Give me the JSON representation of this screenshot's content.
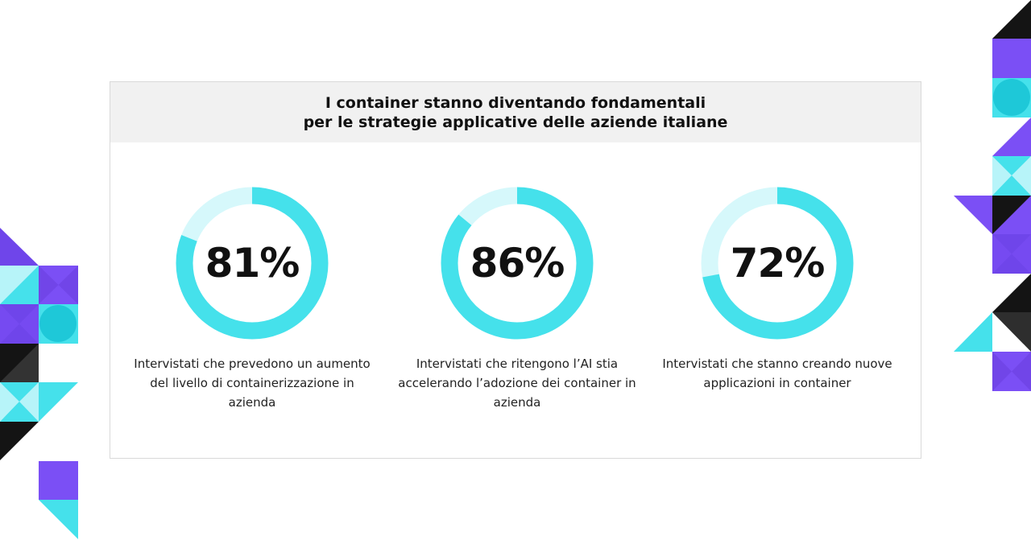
{
  "title_line1": "I container stanno diventando fondamentali",
  "title_line2": "per le strategie applicative delle aziende italiane",
  "colors": {
    "accent": "#45E1EB",
    "track": "#D6F8FB",
    "purple": "#7B4FF5",
    "black": "#141414"
  },
  "chart_data": [
    {
      "type": "pie",
      "value": 81,
      "label": "81%",
      "description": "Intervistati che prevedono un aumento del livello di containerizzazione in azienda"
    },
    {
      "type": "pie",
      "value": 86,
      "label": "86%",
      "description": "Intervistati che ritengono l’AI stia accelerando l’adozione dei container in azienda"
    },
    {
      "type": "pie",
      "value": 72,
      "label": "72%",
      "description": "Intervistati che stanno creando nuove applicazioni in container"
    }
  ]
}
